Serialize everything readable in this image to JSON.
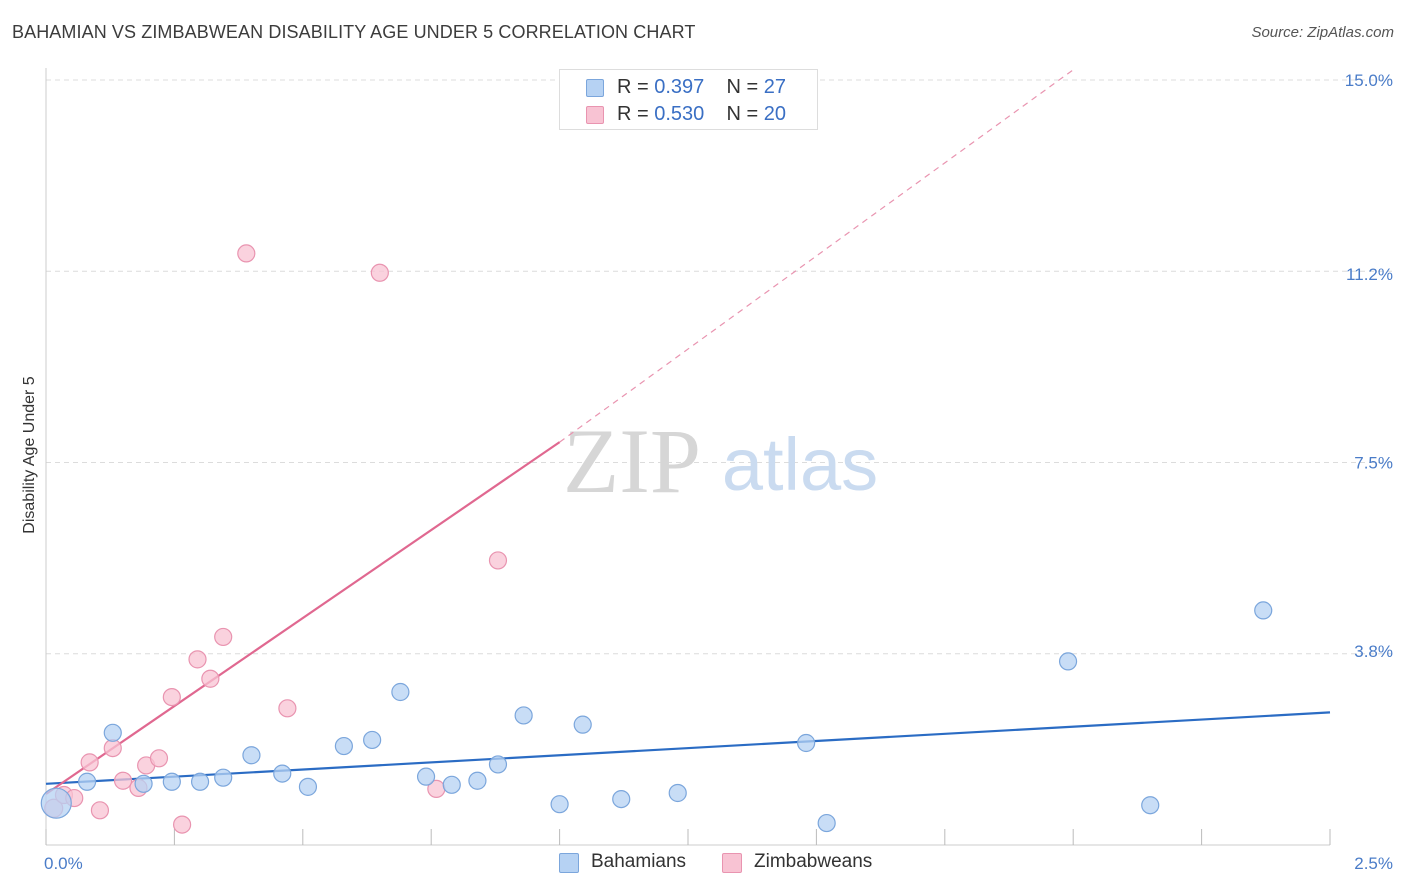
{
  "title": "BAHAMIAN VS ZIMBABWEAN DISABILITY AGE UNDER 5 CORRELATION CHART",
  "source": "Source: ZipAtlas.com",
  "watermark": {
    "zip": "ZIP",
    "atlas": "atlas"
  },
  "legend": {
    "rows": [
      {
        "r_label": "R = ",
        "r_value": "0.397",
        "n_label": "N = ",
        "n_value": "27"
      },
      {
        "r_label": "R = ",
        "r_value": "0.530",
        "n_label": "N = ",
        "n_value": "20"
      }
    ]
  },
  "colors": {
    "blue_fill": "#b6d2f3",
    "blue_stroke": "#7ba6dc",
    "blue_line": "#2b6cc4",
    "pink_fill": "#f8c3d3",
    "pink_stroke": "#e994b0",
    "pink_line": "#e06890",
    "grid": "#dcdcdc",
    "tick_text": "#4a7cc8"
  },
  "chart_data": {
    "type": "scatter",
    "title": "BAHAMIAN VS ZIMBABWEAN DISABILITY AGE UNDER 5 CORRELATION CHART",
    "xlabel": "",
    "ylabel": "Disability Age Under 5",
    "xlim": [
      0,
      2.5
    ],
    "ylim": [
      0,
      15.0
    ],
    "x_tick_labels": [
      {
        "value": 0,
        "label": "0.0%"
      },
      {
        "value": 2.5,
        "label": "2.5%"
      }
    ],
    "y_tick_labels": [
      {
        "value": 3.8,
        "label": "3.8%"
      },
      {
        "value": 7.5,
        "label": "7.5%"
      },
      {
        "value": 11.2,
        "label": "11.2%"
      },
      {
        "value": 15.0,
        "label": "15.0%"
      }
    ],
    "y_gridlines": [
      3.75,
      7.5,
      11.25,
      15.0
    ],
    "series": [
      {
        "name": "Bahamians",
        "color": "#b6d2f3",
        "r": 0.397,
        "n": 27,
        "points": [
          {
            "x": 0.02,
            "y": 0.82,
            "size": 30
          },
          {
            "x": 0.08,
            "y": 1.24
          },
          {
            "x": 0.13,
            "y": 2.2
          },
          {
            "x": 0.19,
            "y": 1.2
          },
          {
            "x": 0.245,
            "y": 1.24
          },
          {
            "x": 0.3,
            "y": 1.24
          },
          {
            "x": 0.345,
            "y": 1.32
          },
          {
            "x": 0.4,
            "y": 1.76
          },
          {
            "x": 0.46,
            "y": 1.4
          },
          {
            "x": 0.51,
            "y": 1.14
          },
          {
            "x": 0.58,
            "y": 1.94
          },
          {
            "x": 0.635,
            "y": 2.06
          },
          {
            "x": 0.69,
            "y": 3.0
          },
          {
            "x": 0.74,
            "y": 1.34
          },
          {
            "x": 0.79,
            "y": 1.18
          },
          {
            "x": 0.84,
            "y": 1.26
          },
          {
            "x": 0.88,
            "y": 1.58
          },
          {
            "x": 0.93,
            "y": 2.54
          },
          {
            "x": 1.0,
            "y": 0.8
          },
          {
            "x": 1.045,
            "y": 2.36
          },
          {
            "x": 1.12,
            "y": 0.9
          },
          {
            "x": 1.23,
            "y": 1.02
          },
          {
            "x": 1.48,
            "y": 2.0
          },
          {
            "x": 1.52,
            "y": 0.43
          },
          {
            "x": 1.99,
            "y": 3.6
          },
          {
            "x": 2.15,
            "y": 0.78
          },
          {
            "x": 2.37,
            "y": 4.6
          }
        ],
        "trend": {
          "x0": 0.0,
          "y0": 1.2,
          "x1": 2.5,
          "y1": 2.6
        }
      },
      {
        "name": "Zimbabweans",
        "color": "#f8c3d3",
        "r": 0.53,
        "n": 20,
        "points": [
          {
            "x": 0.015,
            "y": 0.72,
            "size": 18
          },
          {
            "x": 0.035,
            "y": 0.98
          },
          {
            "x": 0.055,
            "y": 0.92
          },
          {
            "x": 0.085,
            "y": 1.62
          },
          {
            "x": 0.105,
            "y": 0.68
          },
          {
            "x": 0.13,
            "y": 1.9
          },
          {
            "x": 0.15,
            "y": 1.26
          },
          {
            "x": 0.18,
            "y": 1.12
          },
          {
            "x": 0.195,
            "y": 1.56
          },
          {
            "x": 0.22,
            "y": 1.7
          },
          {
            "x": 0.245,
            "y": 2.9
          },
          {
            "x": 0.265,
            "y": 0.4
          },
          {
            "x": 0.295,
            "y": 3.64
          },
          {
            "x": 0.32,
            "y": 3.26
          },
          {
            "x": 0.345,
            "y": 4.08
          },
          {
            "x": 0.39,
            "y": 11.6
          },
          {
            "x": 0.47,
            "y": 2.68
          },
          {
            "x": 0.65,
            "y": 11.22
          },
          {
            "x": 0.76,
            "y": 1.1
          },
          {
            "x": 0.88,
            "y": 5.58
          }
        ],
        "trend": {
          "x0": 0.0,
          "y0": 1.0,
          "x1": 1.0,
          "y1": 7.9
        },
        "trend_extension": {
          "x0": 1.0,
          "y0": 7.9,
          "x1": 2.0,
          "y1": 15.2
        }
      }
    ]
  },
  "bottom_legend": {
    "items": [
      "Bahamians",
      "Zimbabweans"
    ]
  }
}
